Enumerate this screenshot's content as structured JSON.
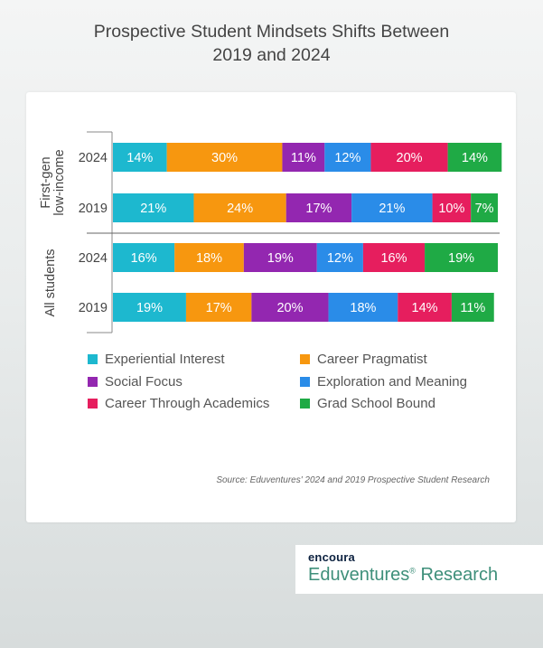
{
  "title_line1": "Prospective Student Mindsets Shifts Between",
  "title_line2": "2019 and 2024",
  "source": "Source: Eduventures' 2024 and 2019 Prospective Student Research",
  "brand": {
    "top": "encoura",
    "main": "Eduventures",
    "reg": "®",
    "suffix": " Research"
  },
  "chart_data": {
    "type": "bar",
    "orientation": "horizontal",
    "stacked": true,
    "xlim": [
      0,
      100
    ],
    "groups": [
      {
        "label": "First-gen low-income",
        "label_lines": [
          "First-gen",
          "low-income"
        ],
        "years": [
          "2024",
          "2019"
        ]
      },
      {
        "label": "All students",
        "label_lines": [
          "All students"
        ],
        "years": [
          "2024",
          "2019"
        ]
      }
    ],
    "categories": [
      "First-gen low-income 2024",
      "First-gen low-income 2019",
      "All students 2024",
      "All students 2019"
    ],
    "row_years": [
      "2024",
      "2019",
      "2024",
      "2019"
    ],
    "series": [
      {
        "name": "Experiential Interest",
        "color": "#1db8cf",
        "values": [
          14,
          21,
          16,
          19
        ],
        "labels": [
          "14%",
          "21%",
          "16%",
          "19%"
        ]
      },
      {
        "name": "Career Pragmatist",
        "color": "#f7970f",
        "values": [
          30,
          24,
          18,
          17
        ],
        "labels": [
          "30%",
          "24%",
          "18%",
          "17%"
        ]
      },
      {
        "name": "Social Focus",
        "color": "#9327b0",
        "values": [
          11,
          17,
          19,
          20
        ],
        "labels": [
          "11%",
          "17%",
          "19%",
          "20%"
        ]
      },
      {
        "name": "Exploration and Meaning",
        "color": "#2a8ce8",
        "values": [
          12,
          21,
          12,
          18
        ],
        "labels": [
          "12%",
          "21%",
          "12%",
          "18%"
        ]
      },
      {
        "name": "Career Through Academics",
        "color": "#e61e5e",
        "values": [
          20,
          10,
          16,
          14
        ],
        "labels": [
          "20%",
          "10%",
          "16%",
          "14%"
        ]
      },
      {
        "name": "Grad School Bound",
        "color": "#1faa45",
        "values": [
          14,
          7,
          19,
          11
        ],
        "labels": [
          "14%",
          "7%",
          "19%",
          "11%"
        ]
      }
    ],
    "legend_position": "bottom"
  }
}
